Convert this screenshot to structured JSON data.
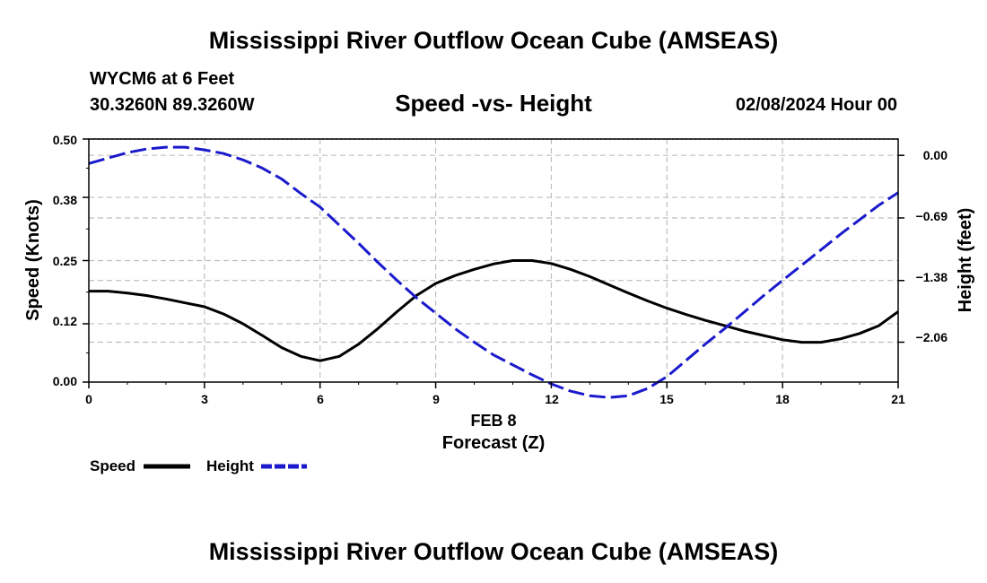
{
  "header": {
    "title": "Mississippi River Outflow Ocean Cube (AMSEAS)",
    "station": "WYCM6 at 6 Feet",
    "coords": "30.3260N  89.3260W",
    "subtitle": "Speed -vs- Height",
    "datetime": "02/08/2024 Hour 00"
  },
  "footer": {
    "title": "Mississippi River Outflow Ocean Cube (AMSEAS)"
  },
  "legend": {
    "speed_label": "Speed",
    "height_label": "Height"
  },
  "colors": {
    "speed": "#000000",
    "height": "#1a1acc",
    "grid": "#bfbfbf"
  },
  "chart_data": {
    "type": "line",
    "title": "Speed -vs- Height",
    "xlabel": "Forecast (Z)",
    "xlabel_date": "FEB 8",
    "ylabel": "Speed (Knots)",
    "y2label": "Height (feet)",
    "xlim": [
      0,
      21
    ],
    "ylim": [
      0,
      0.5
    ],
    "y2lim": [
      -2.5,
      0.18
    ],
    "x_ticks": [
      "0",
      "3",
      "6",
      "9",
      "12",
      "15",
      "18",
      "21"
    ],
    "y_ticks": [
      "0.00",
      "0.12",
      "0.25",
      "0.38",
      "0.50"
    ],
    "y2_ticks": [
      "0.00",
      "−0.69",
      "−1.38",
      "−2.06"
    ],
    "series": [
      {
        "name": "Speed",
        "axis": "left",
        "style": "solid",
        "x": [
          0,
          0.5,
          1,
          1.5,
          2,
          2.5,
          3,
          3.5,
          4,
          4.5,
          5,
          5.5,
          6,
          6.5,
          7,
          7.5,
          8,
          8.5,
          9,
          9.5,
          10,
          10.5,
          11,
          11.5,
          12,
          12.5,
          13,
          13.5,
          14,
          14.5,
          15,
          15.5,
          16,
          16.5,
          17,
          17.5,
          18,
          18.5,
          19,
          19.5,
          20,
          20.5,
          21
        ],
        "values": [
          0.187,
          0.187,
          0.183,
          0.178,
          0.171,
          0.163,
          0.155,
          0.14,
          0.12,
          0.096,
          0.071,
          0.053,
          0.044,
          0.053,
          0.078,
          0.11,
          0.145,
          0.178,
          0.203,
          0.219,
          0.232,
          0.243,
          0.25,
          0.25,
          0.244,
          0.232,
          0.217,
          0.2,
          0.183,
          0.167,
          0.152,
          0.139,
          0.127,
          0.116,
          0.105,
          0.096,
          0.087,
          0.082,
          0.082,
          0.089,
          0.1,
          0.116,
          0.145
        ]
      },
      {
        "name": "Height",
        "axis": "right",
        "style": "dashed",
        "x": [
          0,
          0.5,
          1,
          1.5,
          2,
          2.5,
          3,
          3.5,
          4,
          4.5,
          5,
          5.5,
          6,
          6.5,
          7,
          7.5,
          8,
          8.5,
          9,
          9.5,
          10,
          10.5,
          11,
          11.5,
          12,
          12.5,
          13,
          13.5,
          14,
          14.5,
          15,
          15.5,
          16,
          16.5,
          17,
          17.5,
          18,
          18.5,
          19,
          19.5,
          20,
          20.5,
          21
        ],
        "values": [
          -0.09,
          -0.03,
          0.03,
          0.07,
          0.09,
          0.09,
          0.06,
          0.02,
          -0.05,
          -0.14,
          -0.26,
          -0.42,
          -0.57,
          -0.77,
          -0.97,
          -1.18,
          -1.38,
          -1.57,
          -1.74,
          -1.91,
          -2.06,
          -2.2,
          -2.31,
          -2.42,
          -2.52,
          -2.6,
          -2.65,
          -2.67,
          -2.65,
          -2.57,
          -2.44,
          -2.26,
          -2.08,
          -1.91,
          -1.73,
          -1.55,
          -1.38,
          -1.21,
          -1.04,
          -0.87,
          -0.71,
          -0.55,
          -0.41
        ]
      }
    ]
  }
}
